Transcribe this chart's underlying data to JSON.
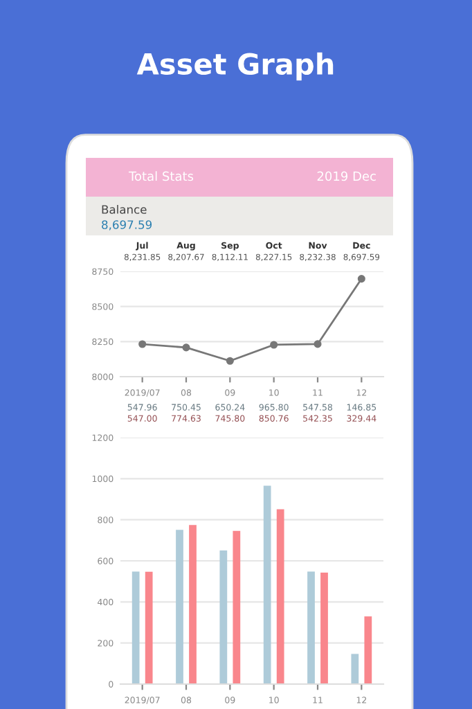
{
  "chart_data": [
    {
      "type": "line",
      "title": "Asset Graph",
      "subtitle": "Total Stats",
      "annotations": [
        "2019 Dec",
        "Balance",
        "8,697.59",
        "Jul",
        "Aug",
        "Sep",
        "Oct",
        "Nov",
        "Dec"
      ],
      "categories": [
        "2019/07",
        "08",
        "09",
        "10",
        "11",
        "12"
      ],
      "series": [
        {
          "color": "#777777",
          "values": [
            8231.85,
            8207.67,
            8112.11,
            8227.15,
            8232.38,
            8697.59
          ],
          "value_labels": [
            "8,231.85",
            "8,207.67",
            "8,112.11",
            "8,227.15",
            "8,232.38",
            "8,697.59"
          ]
        }
      ],
      "ylim": [
        8000,
        8750
      ],
      "yticks": [
        8000,
        8250,
        8500,
        8750
      ],
      "grid": "y",
      "marker": "circle",
      "line_style": "solid",
      "legend": false
    },
    {
      "type": "bar",
      "categories": [
        "2019/07",
        "08",
        "09",
        "10",
        "11",
        "12"
      ],
      "series": [
        {
          "color": "#aecbd9",
          "values": [
            547.96,
            750.45,
            650.24,
            965.8,
            547.58,
            146.85
          ],
          "value_labels": [
            "547.96",
            "750.45",
            "650.24",
            "965.80",
            "547.58",
            "146.85"
          ]
        },
        {
          "color": "#f9868c",
          "values": [
            547.0,
            774.63,
            745.8,
            850.76,
            542.35,
            329.44
          ],
          "value_labels": [
            "547.00",
            "774.63",
            "745.80",
            "850.76",
            "542.35",
            "329.44"
          ]
        }
      ],
      "ylim": [
        0,
        1200
      ],
      "yticks": [
        0,
        200,
        400,
        600,
        800,
        1000,
        1200
      ],
      "grid": "y",
      "legend": false
    }
  ]
}
